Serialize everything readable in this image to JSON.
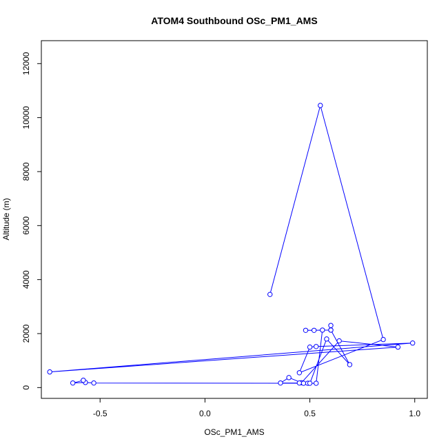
{
  "chart_data": {
    "type": "line",
    "title": "ATOM4 Southbound OSc_PM1_AMS",
    "xlabel": "OSc_PM1_AMS",
    "ylabel": "Altitude (m)",
    "xlim": [
      -0.78,
      1.06
    ],
    "ylim": [
      -400,
      12850
    ],
    "x_ticks": [
      -0.5,
      0.0,
      0.5,
      1.0
    ],
    "x_tick_labels": [
      "-0.5",
      "0.0",
      "0.5",
      "1.0"
    ],
    "y_ticks": [
      0,
      2000,
      4000,
      6000,
      8000,
      10000,
      12000
    ],
    "y_tick_labels": [
      "0",
      "2000",
      "4000",
      "6000",
      "8000",
      "10000",
      "12000"
    ],
    "grid": false,
    "series": [
      {
        "color": "#0000ff",
        "marker": "open-circle",
        "x": [
          0.31,
          0.55,
          0.85,
          0.45,
          0.5,
          0.53,
          0.99,
          -0.74,
          0.92,
          0.64,
          0.46,
          0.4,
          0.36,
          0.45,
          0.47,
          0.49,
          0.5,
          0.58,
          0.69,
          0.6,
          0.6,
          0.6,
          0.48,
          0.52,
          0.56,
          0.53,
          -0.53,
          -0.57,
          -0.63,
          -0.58
        ],
        "y": [
          3450,
          10450,
          1780,
          550,
          1500,
          1520,
          1650,
          580,
          1500,
          1730,
          180,
          370,
          170,
          170,
          160,
          160,
          160,
          1800,
          850,
          2130,
          2300,
          2130,
          2120,
          2120,
          2130,
          160,
          170,
          190,
          170,
          270
        ]
      }
    ]
  }
}
